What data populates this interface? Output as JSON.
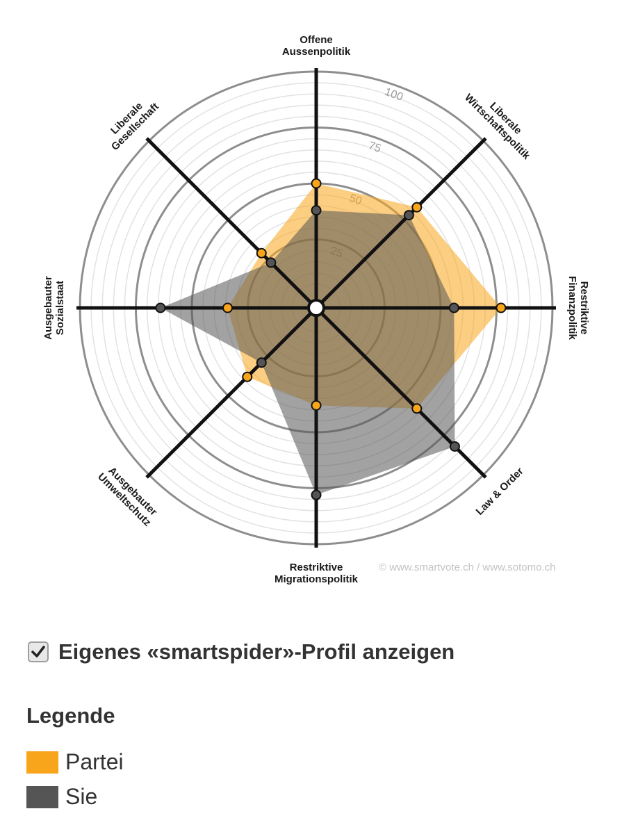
{
  "chart_data": {
    "type": "radar",
    "axes": [
      "Offene Aussenpolitik",
      "Liberale Wirtschaftspolitik",
      "Restriktive Finanzpolitik",
      "Law & Order",
      "Restriktive Migrationspolitik",
      "Ausgebauter Umweltschutz",
      "Ausgebauter Sozialstaat",
      "Liberale Gesellschaft"
    ],
    "axis_labels": [
      [
        "Offene",
        "Aussenpolitik"
      ],
      [
        "Liberale",
        "Wirtschaftspolitik"
      ],
      [
        "Restriktive",
        "Finanzpolitik"
      ],
      [
        "Law & Order"
      ],
      [
        "Restriktive",
        "Migrationspolitik"
      ],
      [
        "Ausgebauter",
        "Umweltschutz"
      ],
      [
        "Ausgebauter",
        "Sozialstaat"
      ],
      [
        "Liberale",
        "Gesellschaft"
      ]
    ],
    "range": [
      0,
      100
    ],
    "ticks": [
      25,
      50,
      75,
      100
    ],
    "series": [
      {
        "name": "Partei",
        "color": "#f8a51c",
        "values": [
          50,
          58,
          77,
          58,
          38,
          38,
          34,
          29
        ]
      },
      {
        "name": "Sie",
        "color": "#555555",
        "values": [
          38,
          53,
          56,
          82,
          78,
          29,
          64,
          23
        ]
      }
    ]
  },
  "copyright": "© www.smartvote.ch / www.sotomo.ch",
  "toggle": {
    "label": "Eigenes «smartspider»-Profil anzeigen",
    "checked": true
  },
  "legend": {
    "title": "Legende",
    "items": [
      {
        "label": "Partei",
        "color": "#f8a51c"
      },
      {
        "label": "Sie",
        "color": "#555555"
      }
    ]
  }
}
